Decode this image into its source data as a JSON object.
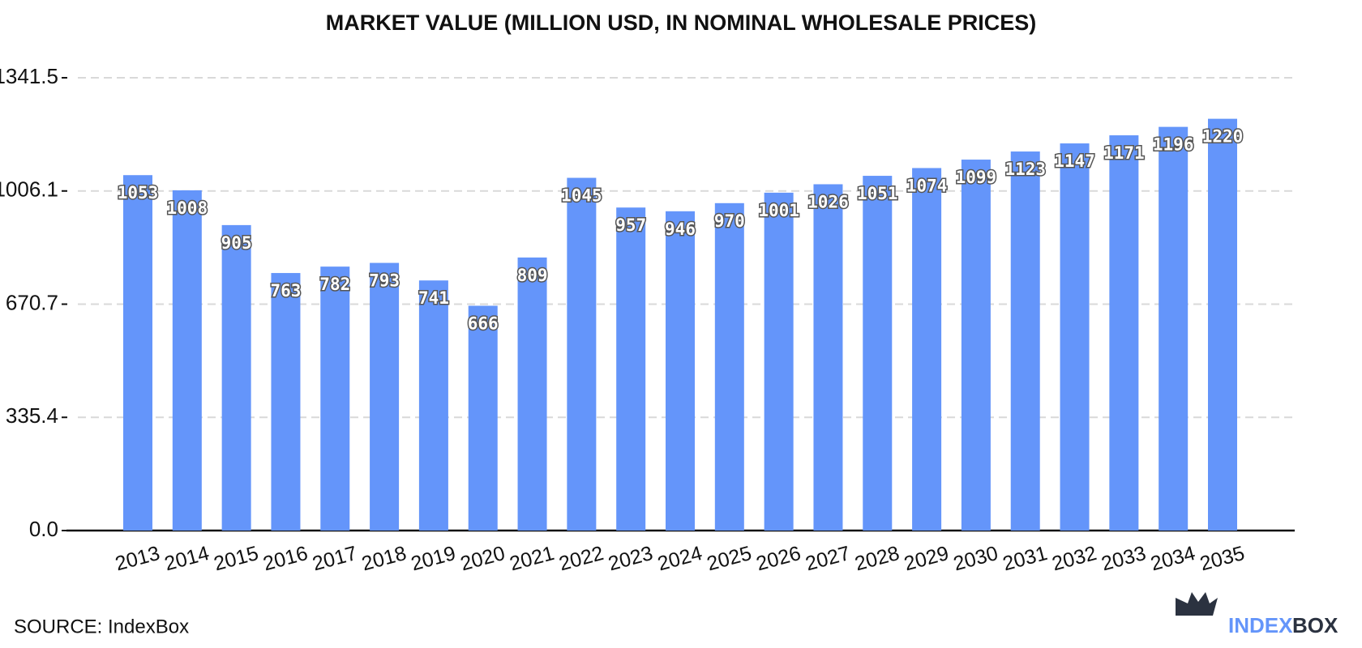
{
  "chart_data": {
    "type": "bar",
    "title": "MARKET VALUE (MILLION USD, IN NOMINAL WHOLESALE PRICES)",
    "categories": [
      "2013",
      "2014",
      "2015",
      "2016",
      "2017",
      "2018",
      "2019",
      "2020",
      "2021",
      "2022",
      "2023",
      "2024",
      "2025",
      "2026",
      "2027",
      "2028",
      "2029",
      "2030",
      "2031",
      "2032",
      "2033",
      "2034",
      "2035"
    ],
    "values": [
      1053,
      1008,
      905,
      763,
      782,
      793,
      741,
      666,
      809,
      1045,
      957,
      946,
      970,
      1001,
      1026,
      1051,
      1074,
      1099,
      1123,
      1147,
      1171,
      1196,
      1220
    ],
    "color": "#6495fa",
    "ylim": [
      0,
      1341.5
    ],
    "yticks": [
      {
        "value": 0,
        "label": "0.0"
      },
      335.4,
      670.7,
      1006.1,
      1341.5
    ],
    "grid": true
  },
  "source": "SOURCE: IndexBox",
  "brand": {
    "first": "INDEX",
    "second": "BOX"
  }
}
